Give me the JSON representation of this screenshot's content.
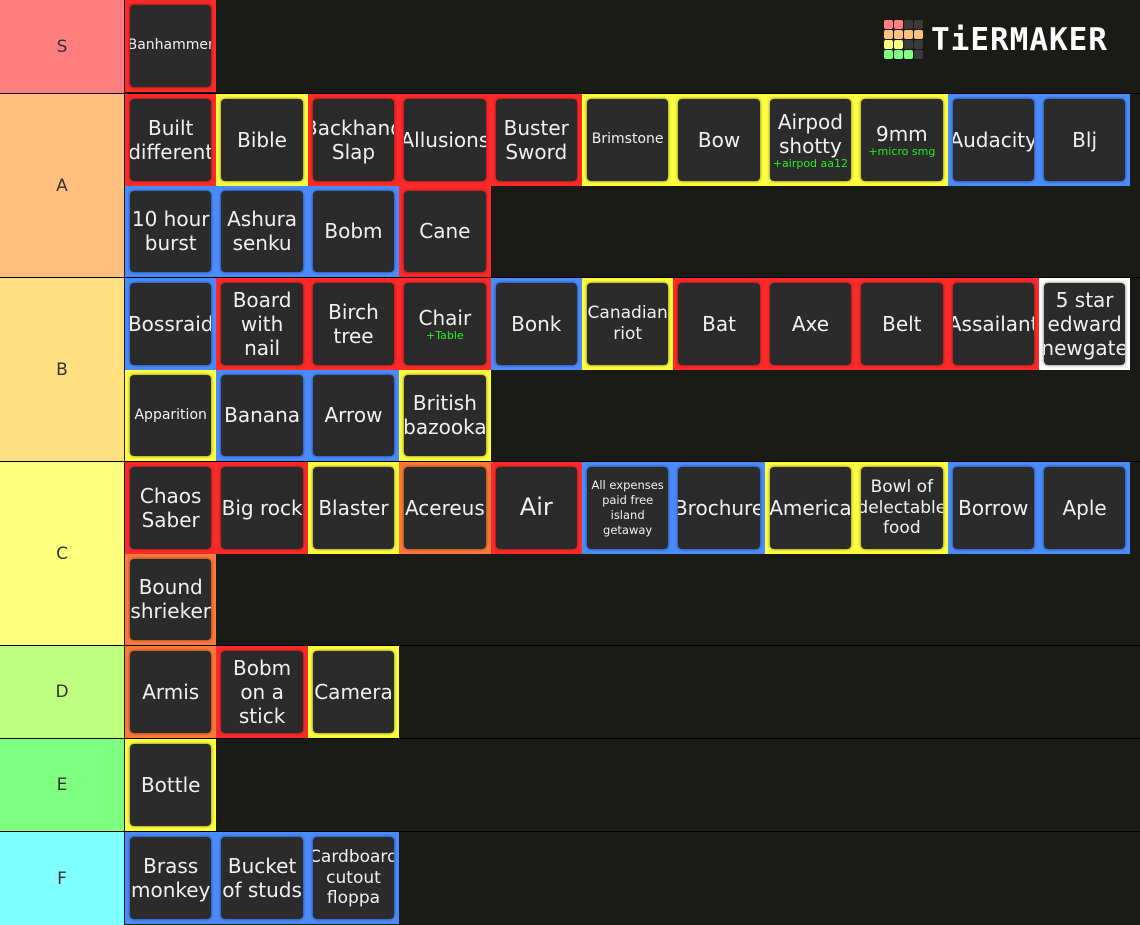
{
  "logo": {
    "text": "TiERMAKER",
    "grid_colors": [
      "#ff7f7f",
      "#ff7f7f",
      "#3a3a3a",
      "#3a3a3a",
      "#ffbf7f",
      "#ffbf7f",
      "#ffbf7f",
      "#ffbf7f",
      "#ffff7f",
      "#ffff7f",
      "#3a3a3a",
      "#3a3a3a",
      "#7fff7f",
      "#7fff7f",
      "#7fff7f",
      "#3a3a3a"
    ]
  },
  "border_colors": {
    "red": "#ff2a2a",
    "yellow": "#ffff40",
    "blue": "#4a8cff",
    "orange": "#ff7a3a",
    "white": "#ffffff"
  },
  "tiers": [
    {
      "label": "S",
      "color": "#ff7f7f",
      "items": [
        {
          "name": "Banhammer",
          "border": "red",
          "size": "s"
        }
      ]
    },
    {
      "label": "A",
      "color": "#ffbf7f",
      "items": [
        {
          "name": "Built different",
          "border": "red",
          "size": "l"
        },
        {
          "name": "Bible",
          "border": "yellow",
          "size": "l"
        },
        {
          "name": "Backhand Slap",
          "border": "red",
          "size": "l"
        },
        {
          "name": "Allusions",
          "border": "red",
          "size": "l"
        },
        {
          "name": "Buster Sword",
          "border": "red",
          "size": "l"
        },
        {
          "name": "Brimstone",
          "border": "yellow",
          "size": "s"
        },
        {
          "name": "Bow",
          "border": "yellow",
          "size": "l"
        },
        {
          "name": "Airpod shotty",
          "sub": "+airpod aa12",
          "border": "yellow",
          "size": "l"
        },
        {
          "name": "9mm",
          "sub": "+micro smg",
          "border": "yellow",
          "size": "l"
        },
        {
          "name": "Audacity",
          "border": "blue",
          "size": "l"
        },
        {
          "name": "Blj",
          "border": "blue",
          "size": "l"
        },
        {
          "name": "10 hour burst",
          "border": "blue",
          "size": "l"
        },
        {
          "name": "Ashura senku",
          "border": "blue",
          "size": "l"
        },
        {
          "name": "Bobm",
          "border": "blue",
          "size": "l"
        },
        {
          "name": "Cane",
          "border": "red",
          "size": "l"
        }
      ]
    },
    {
      "label": "B",
      "color": "#ffdf7f",
      "items": [
        {
          "name": "Bossraid",
          "border": "blue",
          "size": "l"
        },
        {
          "name": "Board with nail",
          "border": "red",
          "size": "l"
        },
        {
          "name": "Birch tree",
          "border": "red",
          "size": "l"
        },
        {
          "name": "Chair",
          "sub": "+Table",
          "border": "red",
          "size": "l"
        },
        {
          "name": "Bonk",
          "border": "blue",
          "size": "l"
        },
        {
          "name": "Canadian riot",
          "border": "yellow",
          "size": "m"
        },
        {
          "name": "Bat",
          "border": "red",
          "size": "l"
        },
        {
          "name": "Axe",
          "border": "red",
          "size": "l"
        },
        {
          "name": "Belt",
          "border": "red",
          "size": "l"
        },
        {
          "name": "Assailant",
          "border": "red",
          "size": "l"
        },
        {
          "name": "5 star edward newgate",
          "border": "white",
          "size": "l"
        },
        {
          "name": "Apparition",
          "border": "yellow",
          "size": "s"
        },
        {
          "name": "Banana",
          "border": "blue",
          "size": "l"
        },
        {
          "name": "Arrow",
          "border": "blue",
          "size": "l"
        },
        {
          "name": "British bazooka",
          "border": "yellow",
          "size": "l"
        }
      ]
    },
    {
      "label": "C",
      "color": "#ffff7f",
      "items": [
        {
          "name": "Chaos Saber",
          "border": "red",
          "size": "l"
        },
        {
          "name": "Big rock",
          "border": "red",
          "size": "l"
        },
        {
          "name": "Blaster",
          "border": "yellow",
          "size": "l"
        },
        {
          "name": "Acereus",
          "border": "orange",
          "size": "l"
        },
        {
          "name": "Air",
          "border": "red",
          "size": "xl"
        },
        {
          "name": "All expenses paid free island getaway",
          "border": "blue",
          "size": "xs"
        },
        {
          "name": "Brochure",
          "border": "blue",
          "size": "l"
        },
        {
          "name": "America",
          "border": "yellow",
          "size": "l"
        },
        {
          "name": "Bowl of delectable food",
          "border": "yellow",
          "size": "m"
        },
        {
          "name": "Borrow",
          "border": "blue",
          "size": "l"
        },
        {
          "name": "Aple",
          "border": "blue",
          "size": "l"
        },
        {
          "name": "Bound shrieker",
          "border": "orange",
          "size": "l"
        }
      ]
    },
    {
      "label": "D",
      "color": "#bfff7f",
      "items": [
        {
          "name": "Armis",
          "border": "orange",
          "size": "l"
        },
        {
          "name": "Bobm on a stick",
          "border": "red",
          "size": "l"
        },
        {
          "name": "Camera",
          "border": "yellow",
          "size": "l"
        }
      ]
    },
    {
      "label": "E",
      "color": "#7fff7f",
      "items": [
        {
          "name": "Bottle",
          "border": "yellow",
          "size": "l"
        }
      ]
    },
    {
      "label": "F",
      "color": "#7fffff",
      "items": [
        {
          "name": "Brass monkey",
          "border": "blue",
          "size": "l"
        },
        {
          "name": "Bucket of studs",
          "border": "blue",
          "size": "l"
        },
        {
          "name": "Cardboard cutout floppa",
          "border": "blue",
          "size": "m"
        }
      ]
    }
  ]
}
